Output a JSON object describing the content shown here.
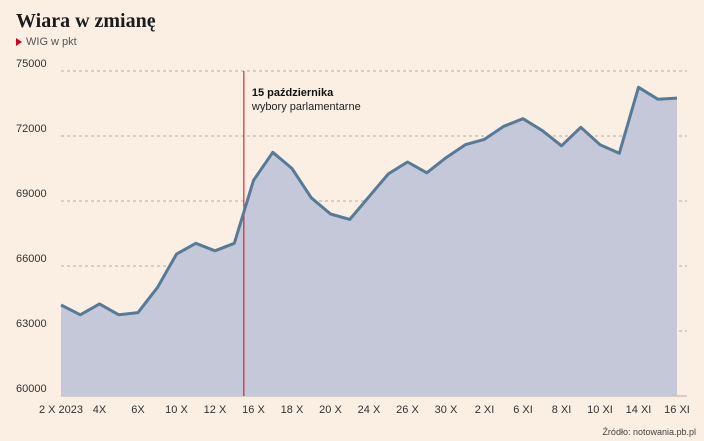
{
  "title": "Wiara w zmianę",
  "legend_label": "WIG w pkt",
  "source": "Źródło: notowania.pb.pl",
  "colors": {
    "background": "#fbeee2",
    "line": "#577a97",
    "area": "#c5c8d8",
    "annotation_line": "#d0021b",
    "grid": "#9a9a9a"
  },
  "annotation": {
    "title": "15 października",
    "subtitle": "wybory parlamentarne",
    "x_index": 9.5
  },
  "chart_data": {
    "type": "area",
    "title": "Wiara w zmianę",
    "ylabel": "WIG w pkt",
    "ylim": [
      60000,
      75000
    ],
    "yticks": [
      60000,
      63000,
      66000,
      69000,
      72000,
      75000
    ],
    "grid": true,
    "x_ticks": [
      {
        "i": 0,
        "label": "2 X 2023"
      },
      {
        "i": 2,
        "label": "4X"
      },
      {
        "i": 4,
        "label": "6X"
      },
      {
        "i": 6,
        "label": "10 X"
      },
      {
        "i": 8,
        "label": "12 X"
      },
      {
        "i": 10,
        "label": "16 X"
      },
      {
        "i": 12,
        "label": "18 X"
      },
      {
        "i": 14,
        "label": "20 X"
      },
      {
        "i": 16,
        "label": "24 X"
      },
      {
        "i": 18,
        "label": "26 X"
      },
      {
        "i": 20,
        "label": "30 X"
      },
      {
        "i": 22,
        "label": "2 XI"
      },
      {
        "i": 24,
        "label": "6 XI"
      },
      {
        "i": 26,
        "label": "8 XI"
      },
      {
        "i": 28,
        "label": "10 XI"
      },
      {
        "i": 30,
        "label": "14 XI"
      },
      {
        "i": 32,
        "label": "16 XI"
      }
    ],
    "values": [
      64200,
      63750,
      64250,
      63750,
      63850,
      65000,
      66550,
      67050,
      66700,
      67050,
      69950,
      71250,
      70500,
      69150,
      68400,
      68150,
      69200,
      70250,
      70800,
      70300,
      71000,
      71600,
      71850,
      72450,
      72800,
      72250,
      71550,
      72400,
      71600,
      71200,
      74250,
      73700,
      73750
    ]
  }
}
